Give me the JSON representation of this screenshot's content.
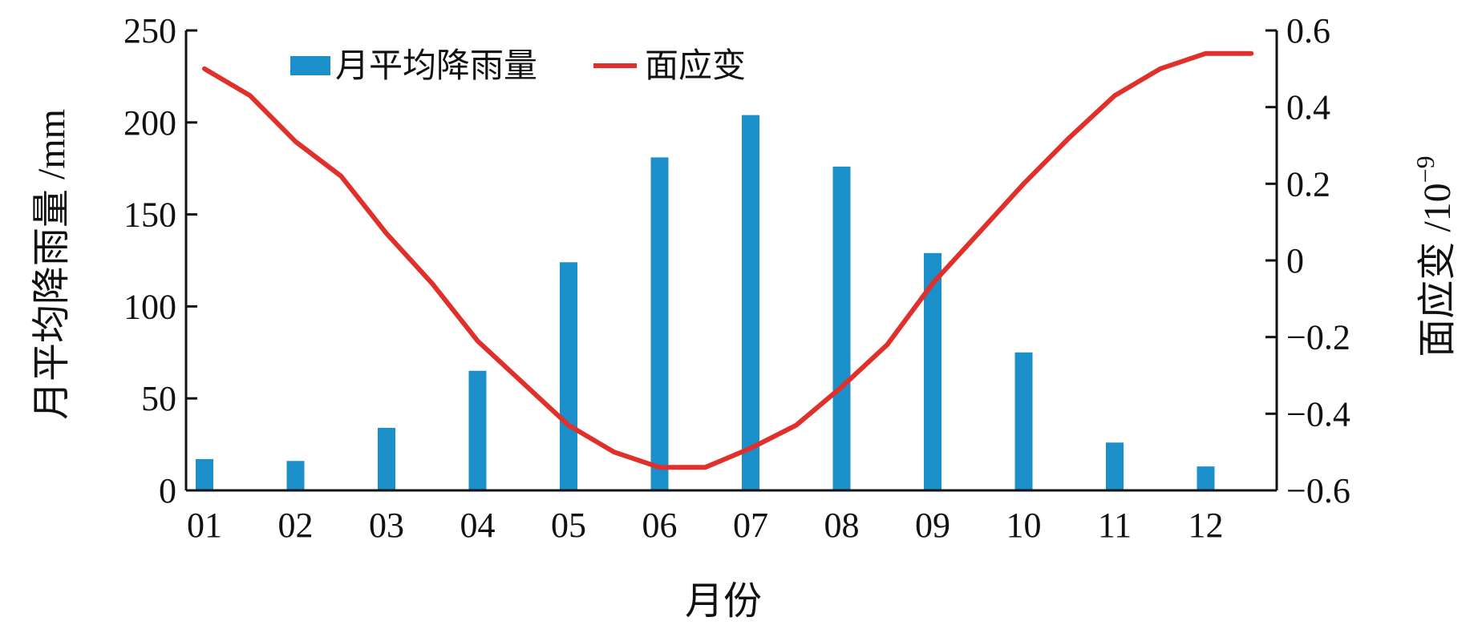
{
  "chart_data": {
    "type": "bar",
    "categories": [
      "01",
      "02",
      "03",
      "04",
      "05",
      "06",
      "07",
      "08",
      "09",
      "10",
      "11",
      "12"
    ],
    "xlabel": "月份",
    "series": [
      {
        "name": "月平均降雨量",
        "type": "bar",
        "axis": "left",
        "color": "#1a8fc9",
        "values": [
          17,
          16,
          34,
          65,
          124,
          181,
          204,
          176,
          129,
          75,
          26,
          13
        ]
      },
      {
        "name": "面应变",
        "type": "line",
        "axis": "right",
        "color": "#e0302b",
        "x": [
          1,
          1.5,
          2,
          2.5,
          3,
          3.5,
          4,
          4.5,
          5,
          5.5,
          6,
          6.5,
          7,
          7.5,
          8,
          8.5,
          9,
          9.5,
          10,
          10.5,
          11,
          11.5,
          12,
          12.5
        ],
        "values": [
          0.5,
          0.43,
          0.31,
          0.22,
          0.07,
          -0.06,
          -0.21,
          -0.32,
          -0.43,
          -0.5,
          -0.54,
          -0.54,
          -0.49,
          -0.43,
          -0.33,
          -0.22,
          -0.06,
          0.07,
          0.2,
          0.32,
          0.43,
          0.5,
          0.54,
          0.54
        ]
      }
    ],
    "y_left": {
      "label": "月平均降雨量 /mm",
      "ylim": [
        0,
        250
      ],
      "ticks": [
        "0",
        "50",
        "100",
        "150",
        "200",
        "250"
      ]
    },
    "y_right": {
      "label": "面应变 /10",
      "label_superscript": "−9",
      "ylim": [
        -0.6,
        0.6
      ],
      "ticks": [
        "−0.6",
        "−0.4",
        "−0.2",
        "0",
        "0.2",
        "0.4",
        "0.6"
      ]
    },
    "legend": {
      "placement": "top-left",
      "entries": [
        "月平均降雨量",
        "面应变"
      ]
    },
    "grid": false
  }
}
